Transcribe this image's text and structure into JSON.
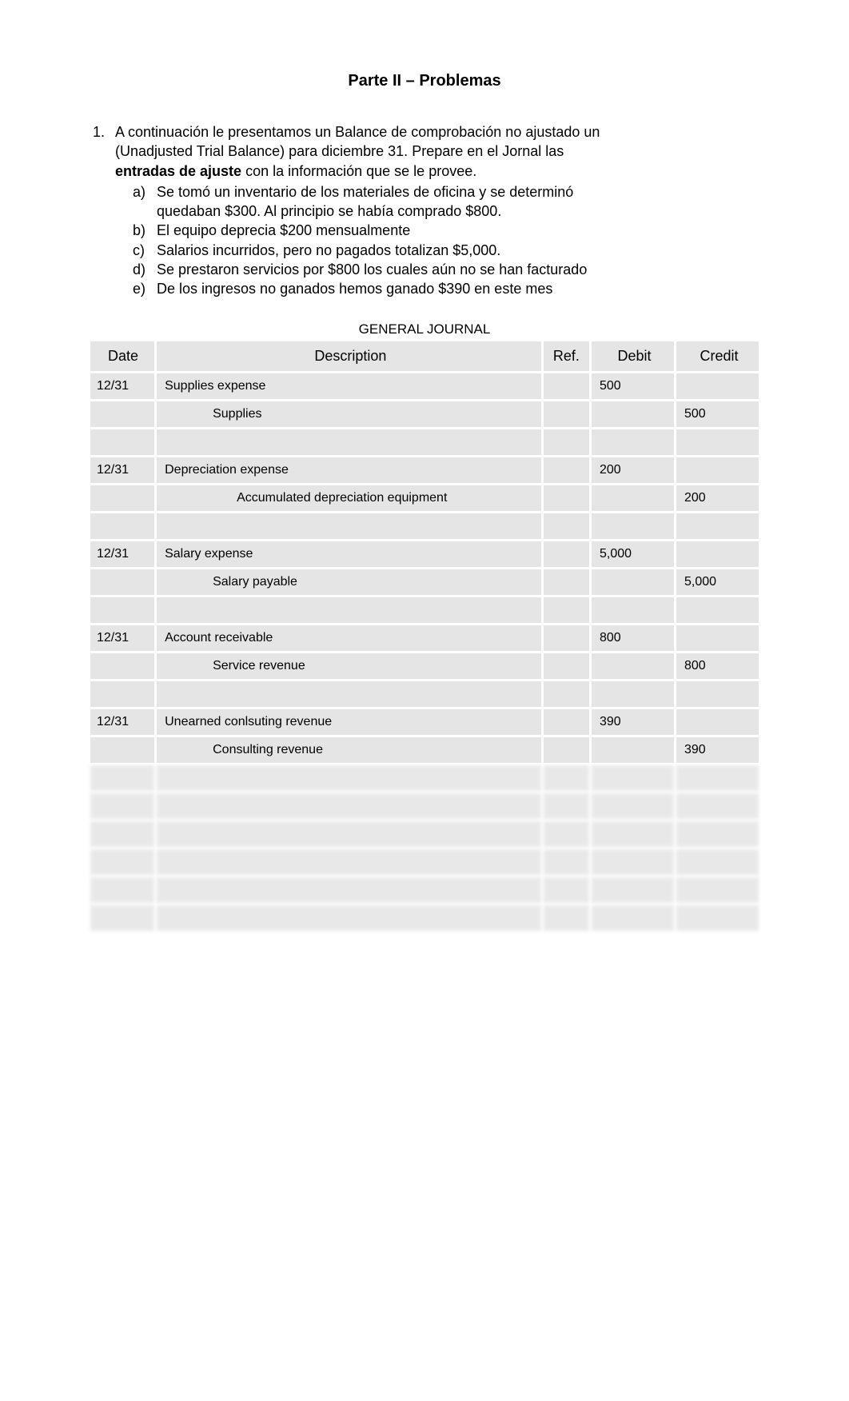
{
  "title": "Parte II – Problemas",
  "problem": {
    "number": "1.",
    "intro_line1": "A continuación le presentamos un Balance de comprobación no ajustado un",
    "intro_line2": "(Unadjusted Trial Balance) para diciembre 31.  Prepare en el Jornal las",
    "intro_line3_bold": "entradas de ajuste",
    "intro_line3_rest": " con la información que se le provee.",
    "items": [
      {
        "letter": "a)",
        "line1": "Se tomó un inventario de los materiales de oficina y se determinó",
        "line2": "quedaban $300. Al principio se había comprado $800."
      },
      {
        "letter": "b)",
        "line1": "El equipo deprecia $200 mensualmente",
        "line2": ""
      },
      {
        "letter": "c)",
        "line1": "Salarios incurridos, pero no pagados totalizan $5,000.",
        "line2": ""
      },
      {
        "letter": "d)",
        "line1": "Se prestaron servicios por $800 los cuales aún no se han facturado",
        "line2": ""
      },
      {
        "letter": "e)",
        "line1": "De los ingresos no ganados hemos ganado $390 en este mes",
        "line2": ""
      }
    ]
  },
  "table_title": "GENERAL JOURNAL",
  "headers": {
    "date": "Date",
    "description": "Description",
    "ref": "Ref.",
    "debit": "Debit",
    "credit": "Credit"
  },
  "rows": [
    {
      "date": "12/31",
      "desc": "Supplies expense",
      "indent": 0,
      "ref": "",
      "debit": "500",
      "credit": ""
    },
    {
      "date": "",
      "desc": "Supplies",
      "indent": 1,
      "ref": "",
      "debit": "",
      "credit": "500"
    },
    {
      "date": "",
      "desc": "",
      "indent": 0,
      "ref": "",
      "debit": "",
      "credit": ""
    },
    {
      "date": "12/31",
      "desc": "Depreciation expense",
      "indent": 0,
      "ref": "",
      "debit": "200",
      "credit": ""
    },
    {
      "date": "",
      "desc": "Accumulated depreciation equipment",
      "indent": 2,
      "ref": "",
      "debit": "",
      "credit": "200"
    },
    {
      "date": "",
      "desc": "",
      "indent": 0,
      "ref": "",
      "debit": "",
      "credit": ""
    },
    {
      "date": "12/31",
      "desc": "Salary expense",
      "indent": 0,
      "ref": "",
      "debit": "5,000",
      "credit": ""
    },
    {
      "date": "",
      "desc": "Salary payable",
      "indent": 1,
      "ref": "",
      "debit": "",
      "credit": "5,000"
    },
    {
      "date": "",
      "desc": "",
      "indent": 0,
      "ref": "",
      "debit": "",
      "credit": ""
    },
    {
      "date": "12/31",
      "desc": "Account receivable",
      "indent": 0,
      "ref": "",
      "debit": "800",
      "credit": ""
    },
    {
      "date": "",
      "desc": "Service revenue",
      "indent": 1,
      "ref": "",
      "debit": "",
      "credit": "800"
    },
    {
      "date": "",
      "desc": "",
      "indent": 0,
      "ref": "",
      "debit": "",
      "credit": ""
    },
    {
      "date": "12/31",
      "desc": "Unearned conlsuting revenue",
      "indent": 0,
      "ref": "",
      "debit": "390",
      "credit": ""
    },
    {
      "date": "",
      "desc": "Consulting revenue",
      "indent": 1,
      "ref": "",
      "debit": "",
      "credit": "390"
    },
    {
      "date": "",
      "desc": "",
      "indent": 0,
      "ref": "",
      "debit": "",
      "credit": "",
      "blur": true
    },
    {
      "date": "",
      "desc": "",
      "indent": 0,
      "ref": "",
      "debit": "",
      "credit": "",
      "blur": true
    },
    {
      "date": "",
      "desc": "",
      "indent": 0,
      "ref": "",
      "debit": "",
      "credit": "",
      "blur": true
    },
    {
      "date": "",
      "desc": "",
      "indent": 0,
      "ref": "",
      "debit": "",
      "credit": "",
      "blur": true
    },
    {
      "date": "",
      "desc": "",
      "indent": 0,
      "ref": "",
      "debit": "",
      "credit": "",
      "blur": true
    },
    {
      "date": "",
      "desc": "",
      "indent": 0,
      "ref": "",
      "debit": "",
      "credit": "",
      "blur": true
    }
  ],
  "colors": {
    "cell_bg": "#e5e5e5",
    "page_bg": "#ffffff",
    "text": "#000000"
  }
}
